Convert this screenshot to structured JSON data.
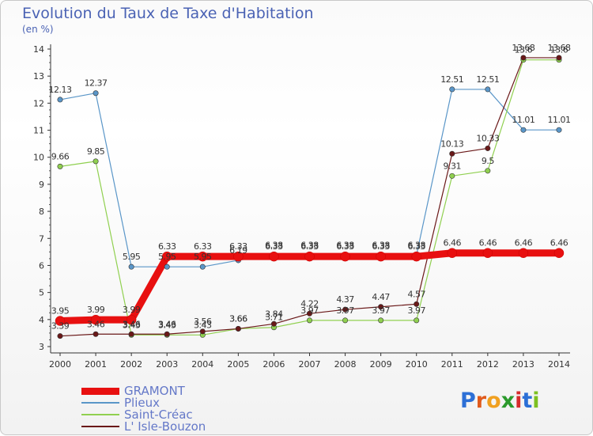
{
  "title": "Evolution du Taux de Taxe d'Habitation",
  "unit_label": "(en %)",
  "brand_letters": [
    {
      "char": "P",
      "color": "#2c6fd6"
    },
    {
      "char": "r",
      "color": "#e05a1c"
    },
    {
      "char": "o",
      "color": "#f0a020"
    },
    {
      "char": "x",
      "color": "#2c9a2c"
    },
    {
      "char": "i",
      "color": "#d62c2c"
    },
    {
      "char": "t",
      "color": "#2c6fd6"
    },
    {
      "char": "i",
      "color": "#7cc020"
    }
  ],
  "chart_data": {
    "type": "line",
    "x": [
      "2000",
      "2001",
      "2002",
      "2003",
      "2004",
      "2005",
      "2006",
      "2007",
      "2008",
      "2009",
      "2010",
      "2011",
      "2012",
      "2013",
      "2014"
    ],
    "ylim": [
      3,
      14
    ],
    "yticks": [
      "3",
      "4",
      "5",
      "6",
      "7",
      "8",
      "9",
      "10",
      "11",
      "12",
      "13",
      "14"
    ],
    "grid": false,
    "legend_position": "bottom-left",
    "series": [
      {
        "name": "GRAMONT",
        "color": "#e81010",
        "values": [
          3.95,
          3.99,
          3.99,
          6.33,
          6.33,
          6.33,
          6.33,
          6.33,
          6.33,
          6.33,
          6.33,
          6.46,
          6.46,
          6.46,
          6.46
        ],
        "labels": [
          "3.95",
          "3.99",
          "3.99",
          "6.33",
          "6.33",
          "6.33",
          "6.33",
          "6.33",
          "6.33",
          "6.33",
          "6.33",
          "6.46",
          "6.46",
          "6.46",
          "6.46"
        ]
      },
      {
        "name": "Plieux",
        "color": "#5a96c8",
        "values": [
          12.13,
          12.37,
          5.95,
          5.95,
          5.95,
          6.19,
          6.38,
          6.38,
          6.38,
          6.38,
          6.38,
          12.51,
          12.51,
          11.01,
          11.01
        ],
        "labels": [
          "12.13",
          "12.37",
          "5.95",
          "5.95",
          "5.95",
          "6.19",
          "6.38",
          "6.38",
          "6.38",
          "6.38",
          "6.38",
          "12.51",
          "12.51",
          "11.01",
          "11.01"
        ]
      },
      {
        "name": "Saint-Créac",
        "color": "#90d050",
        "values": [
          9.66,
          9.85,
          3.43,
          3.43,
          3.43,
          3.66,
          3.71,
          3.97,
          3.97,
          3.97,
          3.97,
          9.31,
          9.5,
          13.6,
          13.6
        ],
        "labels": [
          "9.66",
          "9.85",
          "3.43",
          "3.43",
          "3.43",
          "3.66",
          "3.71",
          "3.97",
          "3.97",
          "3.97",
          "3.97",
          "9.31",
          "9.5",
          "13.6",
          "13.6"
        ]
      },
      {
        "name": "L' Isle-Bouzon",
        "color": "#6a1818",
        "values": [
          3.39,
          3.46,
          3.46,
          3.46,
          3.56,
          3.66,
          3.84,
          4.22,
          4.37,
          4.47,
          4.57,
          10.13,
          10.33,
          13.68,
          13.68
        ],
        "labels": [
          "3.39",
          "3.46",
          "3.46",
          "3.46",
          "3.56",
          "3.66",
          "3.84",
          "4.22",
          "4.37",
          "4.47",
          "4.57",
          "10.13",
          "10.33",
          "13.68",
          "13.68"
        ]
      }
    ]
  }
}
